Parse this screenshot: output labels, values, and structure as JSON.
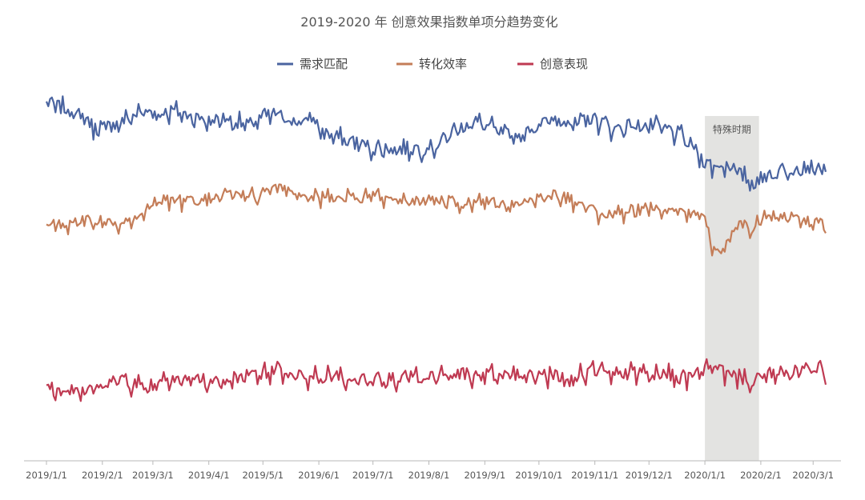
{
  "chart_data": {
    "type": "line",
    "title": "2019-2020 年   创意效果指数单项分趋势变化",
    "xlabel": "",
    "ylabel": "",
    "x_range": [
      "2019-01-01",
      "2020-03-08"
    ],
    "ylim": [
      0,
      100
    ],
    "y_axis_labels_shown": false,
    "grid": false,
    "legend_position": "top-center",
    "x_ticks": [
      "2019/1/1",
      "2019/2/1",
      "2019/3/1",
      "2019/4/1",
      "2019/5/1",
      "2019/6/1",
      "2019/7/1",
      "2019/8/1",
      "2019/9/1",
      "2019/10/1",
      "2019/11/1",
      "2019/12/1",
      "2020/1/1",
      "2020/2/1",
      "2020/3/1"
    ],
    "highlight_band": {
      "label": "特殊时期",
      "start": "2020-01-01",
      "end": "2020-01-31",
      "color": "#e3e3e1"
    },
    "series": [
      {
        "name": "需求匹配",
        "color": "#4a64a0",
        "points": [
          [
            "2019-01-01",
            94
          ],
          [
            "2019-01-08",
            93
          ],
          [
            "2019-01-15",
            92
          ],
          [
            "2019-01-22",
            90
          ],
          [
            "2019-01-29",
            87
          ],
          [
            "2019-02-05",
            88
          ],
          [
            "2019-02-12",
            89
          ],
          [
            "2019-02-19",
            91
          ],
          [
            "2019-02-26",
            92
          ],
          [
            "2019-03-05",
            91
          ],
          [
            "2019-03-12",
            92
          ],
          [
            "2019-03-19",
            91
          ],
          [
            "2019-03-26",
            90
          ],
          [
            "2019-04-02",
            89
          ],
          [
            "2019-04-09",
            90
          ],
          [
            "2019-04-16",
            89
          ],
          [
            "2019-04-23",
            88
          ],
          [
            "2019-04-30",
            90
          ],
          [
            "2019-05-07",
            91
          ],
          [
            "2019-05-14",
            90
          ],
          [
            "2019-05-21",
            89
          ],
          [
            "2019-05-28",
            90
          ],
          [
            "2019-06-04",
            86
          ],
          [
            "2019-06-11",
            85
          ],
          [
            "2019-06-18",
            84
          ],
          [
            "2019-06-25",
            83
          ],
          [
            "2019-07-02",
            82
          ],
          [
            "2019-07-09",
            82
          ],
          [
            "2019-07-16",
            82
          ],
          [
            "2019-07-23",
            82
          ],
          [
            "2019-07-30",
            82
          ],
          [
            "2019-08-06",
            83
          ],
          [
            "2019-08-13",
            86
          ],
          [
            "2019-08-20",
            88
          ],
          [
            "2019-08-27",
            89
          ],
          [
            "2019-09-03",
            88
          ],
          [
            "2019-09-10",
            86
          ],
          [
            "2019-09-17",
            85
          ],
          [
            "2019-09-24",
            86
          ],
          [
            "2019-10-01",
            89
          ],
          [
            "2019-10-08",
            89
          ],
          [
            "2019-10-15",
            90
          ],
          [
            "2019-10-22",
            88
          ],
          [
            "2019-10-29",
            90
          ],
          [
            "2019-11-05",
            89
          ],
          [
            "2019-11-12",
            87
          ],
          [
            "2019-11-19",
            88
          ],
          [
            "2019-11-26",
            88
          ],
          [
            "2019-12-03",
            88
          ],
          [
            "2019-12-10",
            87
          ],
          [
            "2019-12-17",
            86
          ],
          [
            "2019-12-24",
            83
          ],
          [
            "2019-12-31",
            79
          ],
          [
            "2020-01-07",
            77
          ],
          [
            "2020-01-14",
            78
          ],
          [
            "2020-01-21",
            75
          ],
          [
            "2020-01-28",
            73
          ],
          [
            "2020-02-04",
            75
          ],
          [
            "2020-02-11",
            76
          ],
          [
            "2020-02-18",
            77
          ],
          [
            "2020-02-25",
            77
          ],
          [
            "2020-03-03",
            77
          ],
          [
            "2020-03-08",
            76
          ]
        ]
      },
      {
        "name": "转化效率",
        "color": "#c47d58",
        "points": [
          [
            "2019-01-01",
            62
          ],
          [
            "2019-01-08",
            62
          ],
          [
            "2019-01-15",
            62
          ],
          [
            "2019-01-22",
            63
          ],
          [
            "2019-01-29",
            62
          ],
          [
            "2019-02-05",
            62
          ],
          [
            "2019-02-12",
            62
          ],
          [
            "2019-02-19",
            63
          ],
          [
            "2019-02-26",
            67
          ],
          [
            "2019-03-05",
            68
          ],
          [
            "2019-03-12",
            69
          ],
          [
            "2019-03-19",
            68
          ],
          [
            "2019-03-26",
            68
          ],
          [
            "2019-04-02",
            69
          ],
          [
            "2019-04-09",
            70
          ],
          [
            "2019-04-16",
            70
          ],
          [
            "2019-04-23",
            69
          ],
          [
            "2019-04-30",
            70
          ],
          [
            "2019-05-07",
            71
          ],
          [
            "2019-05-14",
            71
          ],
          [
            "2019-05-21",
            70
          ],
          [
            "2019-05-28",
            70
          ],
          [
            "2019-06-04",
            69
          ],
          [
            "2019-06-11",
            69
          ],
          [
            "2019-06-18",
            70
          ],
          [
            "2019-06-25",
            69
          ],
          [
            "2019-07-02",
            70
          ],
          [
            "2019-07-09",
            69
          ],
          [
            "2019-07-16",
            69
          ],
          [
            "2019-07-23",
            69
          ],
          [
            "2019-07-30",
            68
          ],
          [
            "2019-08-06",
            68
          ],
          [
            "2019-08-13",
            68
          ],
          [
            "2019-08-20",
            67
          ],
          [
            "2019-08-27",
            69
          ],
          [
            "2019-09-03",
            68
          ],
          [
            "2019-09-10",
            67
          ],
          [
            "2019-09-17",
            67
          ],
          [
            "2019-09-24",
            69
          ],
          [
            "2019-10-01",
            69
          ],
          [
            "2019-10-08",
            70
          ],
          [
            "2019-10-15",
            69
          ],
          [
            "2019-10-22",
            68
          ],
          [
            "2019-10-29",
            66
          ],
          [
            "2019-11-05",
            64
          ],
          [
            "2019-11-12",
            65
          ],
          [
            "2019-11-19",
            65
          ],
          [
            "2019-11-26",
            66
          ],
          [
            "2019-12-03",
            67
          ],
          [
            "2019-12-10",
            66
          ],
          [
            "2019-12-17",
            66
          ],
          [
            "2019-12-24",
            65
          ],
          [
            "2019-12-31",
            64
          ],
          [
            "2020-01-07",
            54
          ],
          [
            "2020-01-14",
            58
          ],
          [
            "2020-01-21",
            62
          ],
          [
            "2020-01-28",
            61
          ],
          [
            "2020-02-04",
            65
          ],
          [
            "2020-02-11",
            64
          ],
          [
            "2020-02-18",
            64
          ],
          [
            "2020-02-25",
            63
          ],
          [
            "2020-03-03",
            63
          ],
          [
            "2020-03-08",
            62
          ]
        ]
      },
      {
        "name": "创意表现",
        "color": "#bf3a52",
        "points": [
          [
            "2019-01-01",
            20
          ],
          [
            "2019-01-08",
            18
          ],
          [
            "2019-01-15",
            19
          ],
          [
            "2019-01-22",
            19
          ],
          [
            "2019-01-29",
            19
          ],
          [
            "2019-02-05",
            21
          ],
          [
            "2019-02-12",
            21
          ],
          [
            "2019-02-19",
            20
          ],
          [
            "2019-02-26",
            19
          ],
          [
            "2019-03-05",
            20
          ],
          [
            "2019-03-12",
            21
          ],
          [
            "2019-03-19",
            21
          ],
          [
            "2019-03-26",
            22
          ],
          [
            "2019-04-02",
            20
          ],
          [
            "2019-04-09",
            21
          ],
          [
            "2019-04-16",
            22
          ],
          [
            "2019-04-23",
            23
          ],
          [
            "2019-04-30",
            23
          ],
          [
            "2019-05-07",
            24
          ],
          [
            "2019-05-14",
            23
          ],
          [
            "2019-05-21",
            22
          ],
          [
            "2019-05-28",
            22
          ],
          [
            "2019-06-04",
            22
          ],
          [
            "2019-06-11",
            22
          ],
          [
            "2019-06-18",
            21
          ],
          [
            "2019-06-25",
            21
          ],
          [
            "2019-07-02",
            21
          ],
          [
            "2019-07-09",
            21
          ],
          [
            "2019-07-16",
            22
          ],
          [
            "2019-07-23",
            22
          ],
          [
            "2019-07-30",
            22
          ],
          [
            "2019-08-06",
            22
          ],
          [
            "2019-08-13",
            23
          ],
          [
            "2019-08-20",
            23
          ],
          [
            "2019-08-27",
            22
          ],
          [
            "2019-09-03",
            23
          ],
          [
            "2019-09-10",
            22
          ],
          [
            "2019-09-17",
            23
          ],
          [
            "2019-09-24",
            22
          ],
          [
            "2019-10-01",
            22
          ],
          [
            "2019-10-08",
            23
          ],
          [
            "2019-10-15",
            21
          ],
          [
            "2019-10-22",
            22
          ],
          [
            "2019-10-29",
            24
          ],
          [
            "2019-11-05",
            24
          ],
          [
            "2019-11-12",
            23
          ],
          [
            "2019-11-19",
            23
          ],
          [
            "2019-11-26",
            23
          ],
          [
            "2019-12-03",
            22
          ],
          [
            "2019-12-10",
            23
          ],
          [
            "2019-12-17",
            22
          ],
          [
            "2019-12-24",
            22
          ],
          [
            "2019-12-31",
            24
          ],
          [
            "2020-01-07",
            24
          ],
          [
            "2020-01-14",
            23
          ],
          [
            "2020-01-21",
            22
          ],
          [
            "2020-01-28",
            21
          ],
          [
            "2020-02-04",
            22
          ],
          [
            "2020-02-11",
            23
          ],
          [
            "2020-02-18",
            23
          ],
          [
            "2020-02-25",
            24
          ],
          [
            "2020-03-03",
            24
          ],
          [
            "2020-03-08",
            23
          ]
        ]
      }
    ]
  }
}
